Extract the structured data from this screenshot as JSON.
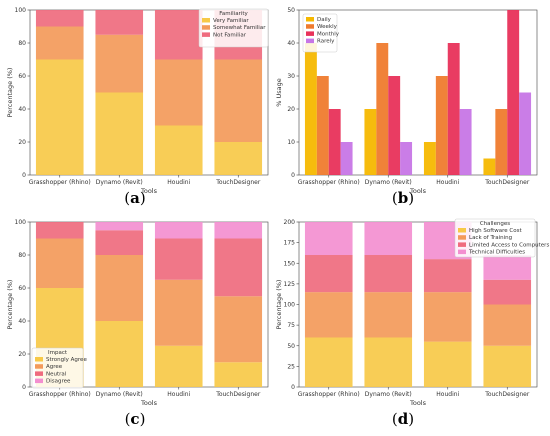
{
  "chart_data": [
    {
      "id": "a",
      "type": "bar",
      "stacked": true,
      "caption": "a",
      "categories": [
        "Grasshopper (Rhino)",
        "Dynamo (Revit)",
        "Houdini",
        "TouchDesigner"
      ],
      "xlabel": "Tools",
      "ylabel": "Percentage (%)",
      "ylim": [
        0,
        100
      ],
      "yticks": [
        0,
        20,
        40,
        60,
        80,
        100
      ],
      "legend_title": "Familiarity",
      "legend_position": "top-right",
      "series": [
        {
          "name": "Very Familiar",
          "color": "#f7c948",
          "values": [
            70,
            50,
            30,
            20
          ]
        },
        {
          "name": "Somewhat Familiar",
          "color": "#f39a5a",
          "values": [
            20,
            35,
            40,
            50
          ]
        },
        {
          "name": "Not Familiar",
          "color": "#ef6b7e",
          "values": [
            10,
            15,
            30,
            30
          ]
        }
      ]
    },
    {
      "id": "b",
      "type": "bar",
      "stacked": false,
      "caption": "b",
      "categories": [
        "Grasshopper (Rhino)",
        "Dynamo (Revit)",
        "Houdini",
        "TouchDesigner"
      ],
      "xlabel": "Tools",
      "ylabel": "% Usage",
      "ylim": [
        0,
        50
      ],
      "yticks": [
        0,
        10,
        20,
        30,
        40,
        50
      ],
      "legend_position": "top-left",
      "series": [
        {
          "name": "Daily",
          "color": "#f5b800",
          "values": [
            40,
            20,
            10,
            5
          ]
        },
        {
          "name": "Weekly",
          "color": "#ef7b2e",
          "values": [
            30,
            40,
            30,
            20
          ]
        },
        {
          "name": "Monthly",
          "color": "#e8325a",
          "values": [
            20,
            30,
            40,
            50
          ]
        },
        {
          "name": "Rarely",
          "color": "#c776e6",
          "values": [
            10,
            10,
            20,
            25
          ]
        }
      ]
    },
    {
      "id": "c",
      "type": "bar",
      "stacked": true,
      "caption": "c",
      "categories": [
        "Grasshopper (Rhino)",
        "Dynamo (Revit)",
        "Houdini",
        "TouchDesigner"
      ],
      "xlabel": "Tools",
      "ylabel": "Percentage (%)",
      "ylim": [
        0,
        100
      ],
      "yticks": [
        0,
        20,
        40,
        60,
        80,
        100
      ],
      "legend_title": "Impact",
      "legend_position": "bottom-left",
      "series": [
        {
          "name": "Strongly Agree",
          "color": "#f7c948",
          "values": [
            60,
            40,
            25,
            15
          ]
        },
        {
          "name": "Agree",
          "color": "#f39a5a",
          "values": [
            30,
            40,
            40,
            40
          ]
        },
        {
          "name": "Neutral",
          "color": "#ef6b7e",
          "values": [
            10,
            15,
            25,
            35
          ]
        },
        {
          "name": "Disagree",
          "color": "#f38fd0",
          "values": [
            0,
            5,
            10,
            10
          ]
        }
      ]
    },
    {
      "id": "d",
      "type": "bar",
      "stacked": true,
      "caption": "d",
      "categories": [
        "Grasshopper (Rhino)",
        "Dynamo (Revit)",
        "Houdini",
        "TouchDesigner"
      ],
      "xlabel": "Tools",
      "ylabel": "Percentage (%)",
      "ylim": [
        0,
        200
      ],
      "yticks": [
        0,
        25,
        50,
        75,
        100,
        125,
        150,
        175,
        200
      ],
      "legend_title": "Challenges",
      "legend_position": "top-right",
      "series": [
        {
          "name": "High Software Cost",
          "color": "#f7c948",
          "values": [
            60,
            60,
            55,
            50
          ]
        },
        {
          "name": "Lack of Training",
          "color": "#f39a5a",
          "values": [
            55,
            55,
            60,
            50
          ]
        },
        {
          "name": "Limited Access to Computers",
          "color": "#ef6b7e",
          "values": [
            45,
            45,
            40,
            30
          ]
        },
        {
          "name": "Technical Difficulties",
          "color": "#f38fd0",
          "values": [
            40,
            40,
            45,
            30
          ]
        }
      ]
    }
  ]
}
